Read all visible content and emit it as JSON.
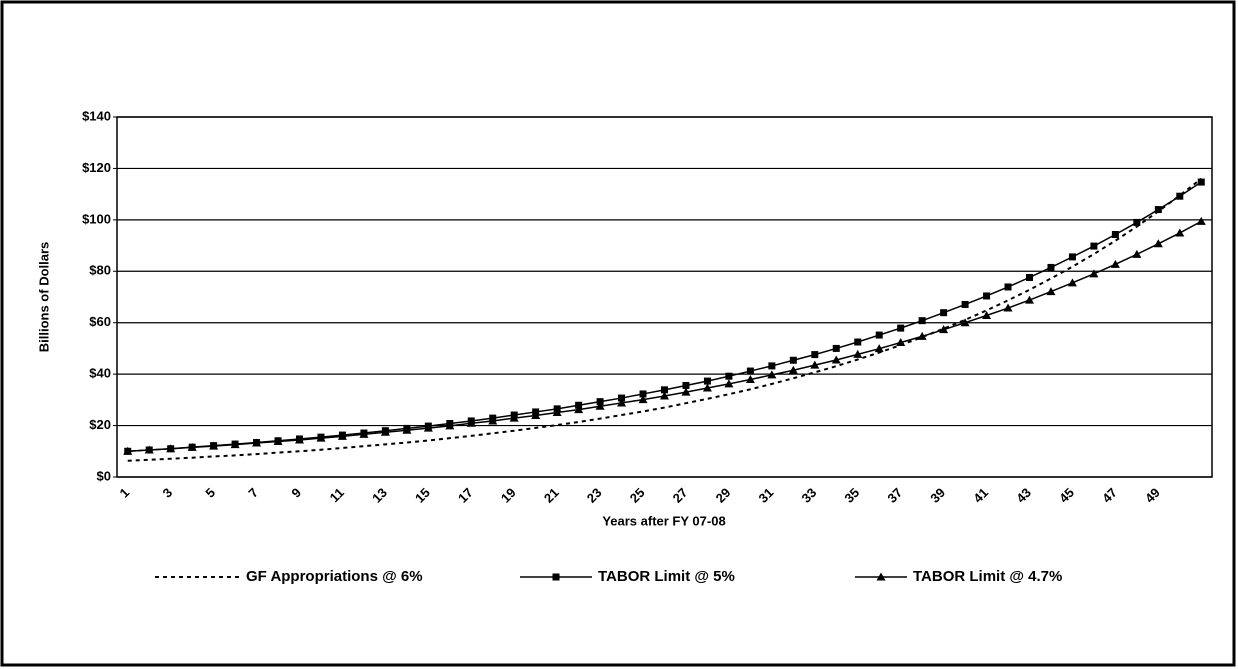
{
  "chart_data": {
    "type": "line",
    "y_label": "Billions of Dollars",
    "x_label": "Years after FY 07-08",
    "categories": [
      1,
      null,
      3,
      null,
      5,
      null,
      7,
      null,
      9,
      null,
      11,
      null,
      13,
      null,
      15,
      null,
      17,
      null,
      19,
      null,
      21,
      null,
      23,
      null,
      25,
      null,
      27,
      null,
      29,
      null,
      31,
      null,
      33,
      null,
      35,
      null,
      37,
      null,
      39,
      null,
      41,
      null,
      43,
      null,
      45,
      null,
      47,
      null,
      49,
      null,
      null
    ],
    "ylim": [
      0,
      140
    ],
    "yticks": [
      {
        "value": 0,
        "label": "$0"
      },
      {
        "value": 20,
        "label": "$20"
      },
      {
        "value": 40,
        "label": "$40"
      },
      {
        "value": 60,
        "label": "$60"
      },
      {
        "value": 80,
        "label": "$80"
      },
      {
        "value": 100,
        "label": "$100"
      },
      {
        "value": 120,
        "label": "$120"
      },
      {
        "value": 140,
        "label": "$140"
      }
    ],
    "grid": true,
    "legend": "bottom",
    "series": [
      {
        "name": "GF Appropriations @ 6%",
        "color": "#000000",
        "dash": true,
        "marker": "none",
        "values": [
          6.3,
          6.7,
          7.1,
          7.5,
          8.0,
          8.4,
          8.9,
          9.5,
          10.0,
          10.6,
          11.3,
          12.0,
          12.7,
          13.4,
          14.2,
          15.1,
          16.0,
          17.0,
          18.0,
          19.1,
          20.2,
          21.4,
          22.7,
          24.1,
          25.5,
          27.0,
          28.7,
          30.4,
          32.2,
          34.1,
          36.2,
          38.4,
          40.7,
          43.1,
          45.7,
          48.4,
          51.3,
          54.4,
          57.7,
          61.1,
          64.8,
          68.7,
          72.8,
          77.2,
          81.8,
          86.7,
          91.9,
          97.4,
          103.3,
          109.5,
          116.0
        ]
      },
      {
        "name": "TABOR Limit @ 5%",
        "color": "#000000",
        "dash": false,
        "marker": "square",
        "values": [
          10.0,
          10.5,
          11.0,
          11.6,
          12.2,
          12.8,
          13.4,
          14.1,
          14.8,
          15.5,
          16.3,
          17.1,
          18.0,
          18.9,
          19.8,
          20.8,
          21.8,
          22.9,
          24.1,
          25.3,
          26.5,
          27.9,
          29.3,
          30.7,
          32.3,
          33.9,
          35.6,
          37.3,
          39.2,
          41.2,
          43.2,
          45.4,
          47.6,
          50.0,
          52.5,
          55.2,
          57.9,
          60.8,
          63.9,
          67.1,
          70.4,
          73.9,
          77.6,
          81.5,
          85.6,
          89.8,
          94.3,
          99.0,
          104.0,
          109.2,
          114.7
        ]
      },
      {
        "name": "TABOR Limit @ 4.7%",
        "color": "#000000",
        "dash": false,
        "marker": "triangle",
        "values": [
          10.0,
          10.5,
          11.0,
          11.5,
          12.0,
          12.6,
          13.2,
          13.8,
          14.4,
          15.1,
          15.8,
          16.6,
          17.4,
          18.2,
          19.0,
          19.9,
          20.9,
          21.8,
          22.9,
          23.9,
          25.1,
          26.2,
          27.5,
          28.8,
          30.1,
          31.5,
          33.0,
          34.6,
          36.2,
          37.9,
          39.7,
          41.5,
          43.5,
          45.5,
          47.7,
          49.9,
          52.3,
          54.7,
          57.3,
          60.0,
          62.8,
          65.7,
          68.8,
          72.1,
          75.5,
          79.0,
          82.7,
          86.6,
          90.7,
          94.9,
          99.4
        ]
      }
    ]
  }
}
